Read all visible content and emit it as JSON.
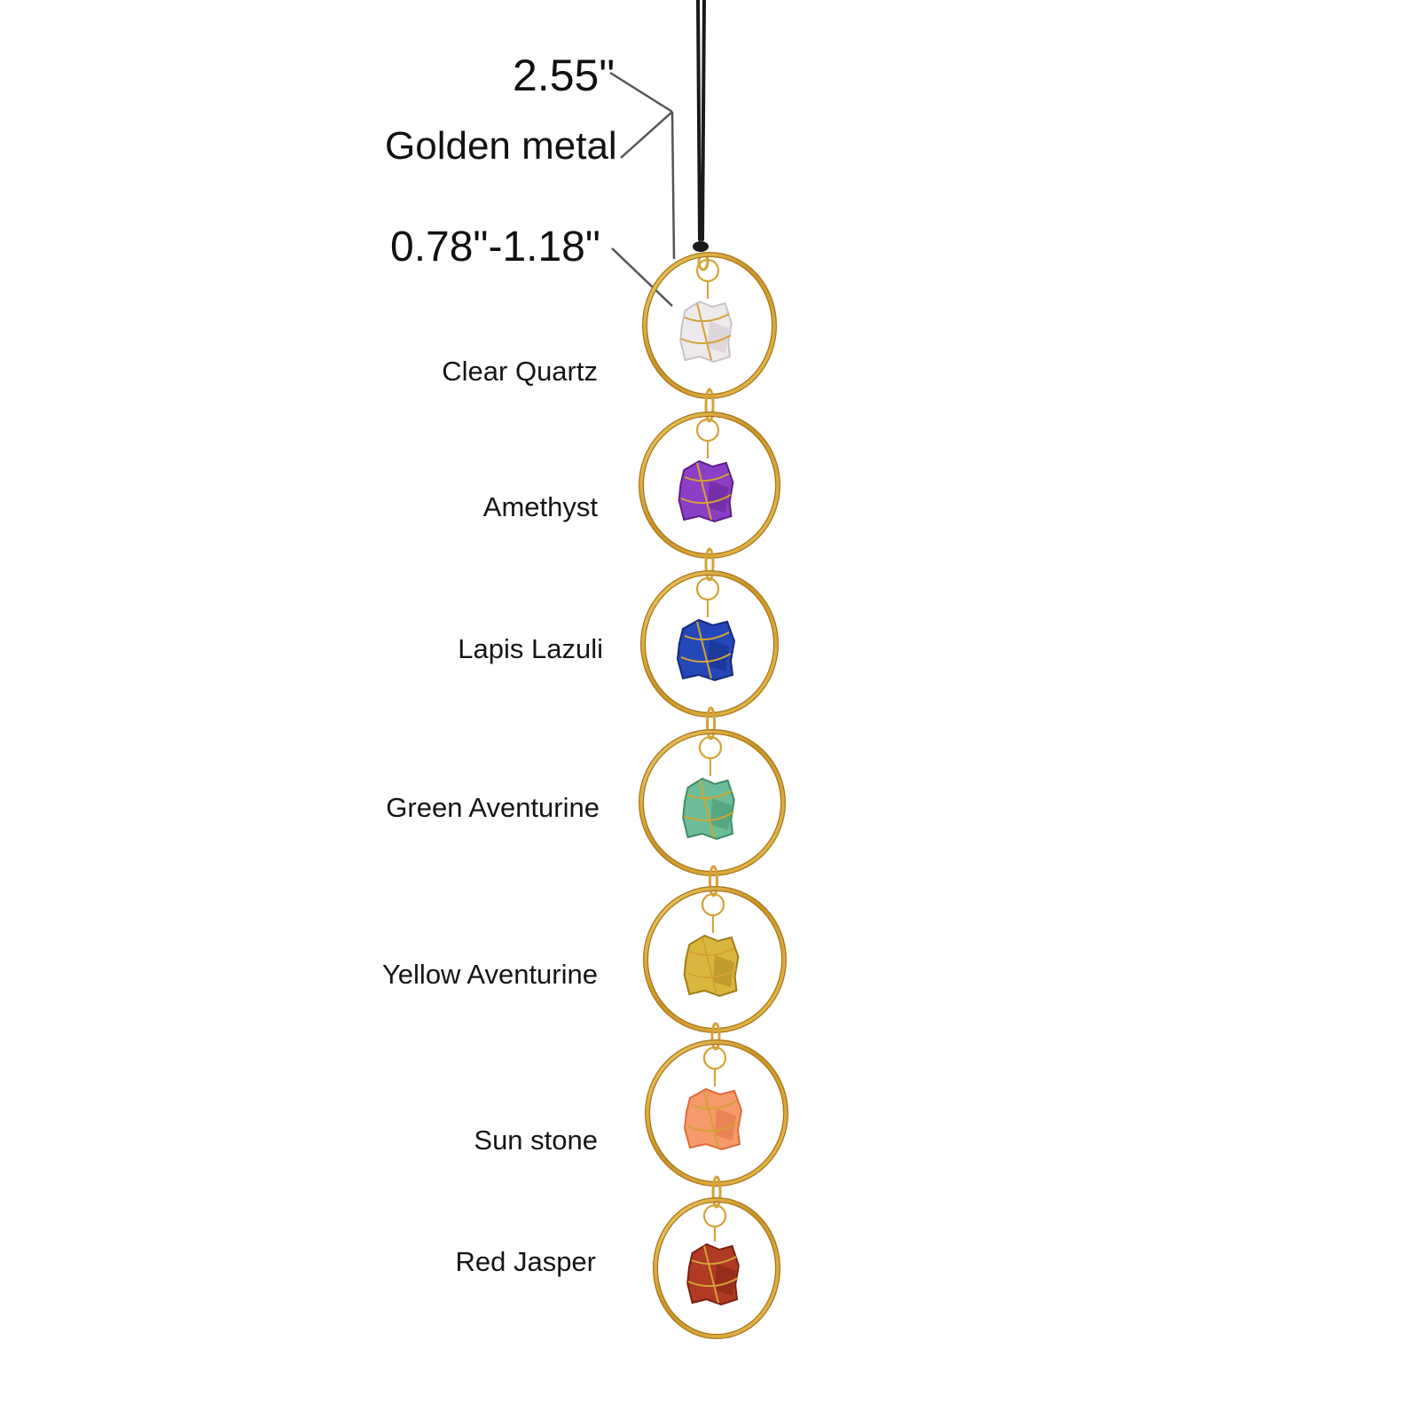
{
  "annotations": {
    "cord_length": "2.55\"",
    "material": "Golden metal",
    "stone_size": "0.78\"-1.18\""
  },
  "stones": [
    {
      "name": "Clear Quartz",
      "color": "#eee9ec",
      "shade": "#c9c2c8"
    },
    {
      "name": "Amethyst",
      "color": "#8a3fc4",
      "shade": "#5b1f8a"
    },
    {
      "name": "Lapis Lazuli",
      "color": "#2447b8",
      "shade": "#142a78"
    },
    {
      "name": "Green Aventurine",
      "color": "#6cbd97",
      "shade": "#3f8a68"
    },
    {
      "name": "Yellow Aventurine",
      "color": "#d9b63d",
      "shade": "#a07d1c"
    },
    {
      "name": "Sun stone",
      "color": "#f59a6a",
      "shade": "#e06a3c"
    },
    {
      "name": "Red Jasper",
      "color": "#b03a24",
      "shade": "#7a2012"
    }
  ],
  "colors": {
    "gold": "#d4a237",
    "gold_dark": "#a8761a",
    "cord": "#1a1a1a",
    "leader": "#555555"
  }
}
